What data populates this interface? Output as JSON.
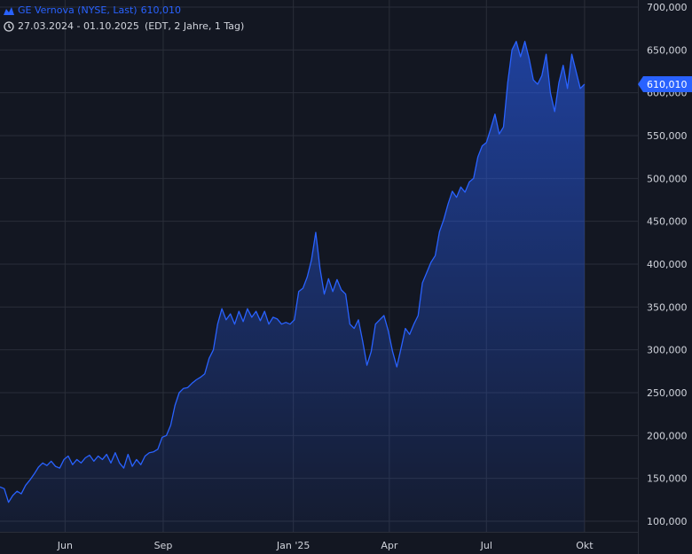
{
  "legend": {
    "instrument": "GE Vernova (NYSE, Last)",
    "last_value": "610,010",
    "range": "27.03.2024 - 01.10.2025",
    "info": "(EDT, 2 Jahre, 1 Tag)",
    "chart_icon": "mountain-chart-icon",
    "clock_icon": "clock-icon"
  },
  "price_label": "610,010",
  "colors": {
    "background": "#131722",
    "grid": "#2a2e39",
    "line": "#2962ff",
    "text": "#d1d4dc",
    "price_badge": "#2962ff"
  },
  "chart_data": {
    "type": "area",
    "title": "GE Vernova (NYSE, Last)",
    "xlabel": "",
    "ylabel": "",
    "ylim": [
      85000,
      705000
    ],
    "y_ticks": [
      100000,
      150000,
      200000,
      250000,
      300000,
      350000,
      400000,
      450000,
      500000,
      550000,
      600000,
      650000,
      700000
    ],
    "y_tick_labels": [
      "100,000",
      "150,000",
      "200,000",
      "250,000",
      "300,000",
      "350,000",
      "400,000",
      "450,000",
      "500,000",
      "550,000",
      "600,000",
      "650,000",
      "700,000"
    ],
    "x_ticks": [
      "2024-06-01",
      "2024-09-01",
      "2025-01-01",
      "2025-04-01",
      "2025-07-01",
      "2025-10-01"
    ],
    "x_tick_labels": [
      "Jun",
      "Sep",
      "Jan '25",
      "Apr",
      "Jul",
      "Okt"
    ],
    "x_range": [
      "2024-04-01",
      "2025-11-20"
    ],
    "grid": true,
    "last_value": 610010,
    "series": [
      {
        "name": "GE Vernova (NYSE, Last)",
        "points": [
          [
            "2024-04-01",
            140000
          ],
          [
            "2024-04-05",
            138000
          ],
          [
            "2024-04-09",
            122000
          ],
          [
            "2024-04-13",
            130000
          ],
          [
            "2024-04-17",
            135000
          ],
          [
            "2024-04-21",
            132000
          ],
          [
            "2024-04-25",
            142000
          ],
          [
            "2024-04-29",
            148000
          ],
          [
            "2024-05-03",
            155000
          ],
          [
            "2024-05-07",
            163000
          ],
          [
            "2024-05-11",
            168000
          ],
          [
            "2024-05-15",
            165000
          ],
          [
            "2024-05-19",
            170000
          ],
          [
            "2024-05-23",
            164000
          ],
          [
            "2024-05-27",
            162000
          ],
          [
            "2024-05-31",
            172000
          ],
          [
            "2024-06-04",
            176000
          ],
          [
            "2024-06-08",
            166000
          ],
          [
            "2024-06-12",
            172000
          ],
          [
            "2024-06-16",
            168000
          ],
          [
            "2024-06-20",
            174000
          ],
          [
            "2024-06-24",
            177000
          ],
          [
            "2024-06-28",
            170000
          ],
          [
            "2024-07-02",
            176000
          ],
          [
            "2024-07-06",
            172000
          ],
          [
            "2024-07-10",
            178000
          ],
          [
            "2024-07-14",
            168000
          ],
          [
            "2024-07-18",
            180000
          ],
          [
            "2024-07-22",
            168000
          ],
          [
            "2024-07-26",
            162000
          ],
          [
            "2024-07-30",
            178000
          ],
          [
            "2024-08-03",
            164000
          ],
          [
            "2024-08-07",
            172000
          ],
          [
            "2024-08-11",
            166000
          ],
          [
            "2024-08-15",
            176000
          ],
          [
            "2024-08-19",
            180000
          ],
          [
            "2024-08-23",
            181000
          ],
          [
            "2024-08-27",
            184000
          ],
          [
            "2024-08-31",
            198000
          ],
          [
            "2024-09-04",
            200000
          ],
          [
            "2024-09-08",
            212000
          ],
          [
            "2024-09-12",
            235000
          ],
          [
            "2024-09-16",
            250000
          ],
          [
            "2024-09-20",
            255000
          ],
          [
            "2024-09-24",
            256000
          ],
          [
            "2024-09-28",
            261000
          ],
          [
            "2024-10-02",
            265000
          ],
          [
            "2024-10-06",
            268000
          ],
          [
            "2024-10-10",
            272000
          ],
          [
            "2024-10-14",
            290000
          ],
          [
            "2024-10-18",
            300000
          ],
          [
            "2024-10-22",
            330000
          ],
          [
            "2024-10-26",
            348000
          ],
          [
            "2024-10-30",
            335000
          ],
          [
            "2024-11-03",
            342000
          ],
          [
            "2024-11-07",
            330000
          ],
          [
            "2024-11-11",
            345000
          ],
          [
            "2024-11-15",
            333000
          ],
          [
            "2024-11-19",
            348000
          ],
          [
            "2024-11-23",
            338000
          ],
          [
            "2024-11-27",
            345000
          ],
          [
            "2024-12-01",
            334000
          ],
          [
            "2024-12-05",
            345000
          ],
          [
            "2024-12-09",
            330000
          ],
          [
            "2024-12-13",
            338000
          ],
          [
            "2024-12-17",
            336000
          ],
          [
            "2024-12-21",
            330000
          ],
          [
            "2024-12-25",
            332000
          ],
          [
            "2024-12-29",
            330000
          ],
          [
            "2025-01-02",
            335000
          ],
          [
            "2025-01-06",
            368000
          ],
          [
            "2025-01-10",
            372000
          ],
          [
            "2025-01-14",
            385000
          ],
          [
            "2025-01-18",
            405000
          ],
          [
            "2025-01-22",
            437000
          ],
          [
            "2025-01-26",
            395000
          ],
          [
            "2025-01-30",
            365000
          ],
          [
            "2025-02-03",
            383000
          ],
          [
            "2025-02-07",
            368000
          ],
          [
            "2025-02-11",
            382000
          ],
          [
            "2025-02-15",
            370000
          ],
          [
            "2025-02-19",
            365000
          ],
          [
            "2025-02-23",
            330000
          ],
          [
            "2025-02-27",
            325000
          ],
          [
            "2025-03-03",
            335000
          ],
          [
            "2025-03-07",
            310000
          ],
          [
            "2025-03-11",
            282000
          ],
          [
            "2025-03-15",
            298000
          ],
          [
            "2025-03-19",
            330000
          ],
          [
            "2025-03-23",
            335000
          ],
          [
            "2025-03-27",
            340000
          ],
          [
            "2025-03-31",
            322000
          ],
          [
            "2025-04-04",
            298000
          ],
          [
            "2025-04-08",
            280000
          ],
          [
            "2025-04-12",
            302000
          ],
          [
            "2025-04-16",
            325000
          ],
          [
            "2025-04-20",
            318000
          ],
          [
            "2025-04-24",
            330000
          ],
          [
            "2025-04-28",
            340000
          ],
          [
            "2025-05-02",
            378000
          ],
          [
            "2025-05-06",
            390000
          ],
          [
            "2025-05-10",
            402000
          ],
          [
            "2025-05-14",
            410000
          ],
          [
            "2025-05-18",
            438000
          ],
          [
            "2025-05-22",
            452000
          ],
          [
            "2025-05-26",
            470000
          ],
          [
            "2025-05-30",
            485000
          ],
          [
            "2025-06-03",
            478000
          ],
          [
            "2025-06-07",
            490000
          ],
          [
            "2025-06-11",
            484000
          ],
          [
            "2025-06-15",
            496000
          ],
          [
            "2025-06-19",
            500000
          ],
          [
            "2025-06-23",
            525000
          ],
          [
            "2025-06-27",
            538000
          ],
          [
            "2025-07-01",
            542000
          ],
          [
            "2025-07-05",
            558000
          ],
          [
            "2025-07-09",
            575000
          ],
          [
            "2025-07-13",
            552000
          ],
          [
            "2025-07-17",
            560000
          ],
          [
            "2025-07-21",
            612000
          ],
          [
            "2025-07-25",
            650000
          ],
          [
            "2025-07-29",
            660000
          ],
          [
            "2025-08-02",
            642000
          ],
          [
            "2025-08-06",
            660000
          ],
          [
            "2025-08-10",
            640000
          ],
          [
            "2025-08-14",
            615000
          ],
          [
            "2025-08-18",
            610000
          ],
          [
            "2025-08-22",
            620000
          ],
          [
            "2025-08-26",
            645000
          ],
          [
            "2025-08-30",
            600000
          ],
          [
            "2025-09-03",
            578000
          ],
          [
            "2025-09-07",
            612000
          ],
          [
            "2025-09-11",
            632000
          ],
          [
            "2025-09-15",
            605000
          ],
          [
            "2025-09-19",
            645000
          ],
          [
            "2025-09-23",
            625000
          ],
          [
            "2025-09-27",
            605000
          ],
          [
            "2025-10-01",
            610010
          ]
        ]
      }
    ]
  }
}
